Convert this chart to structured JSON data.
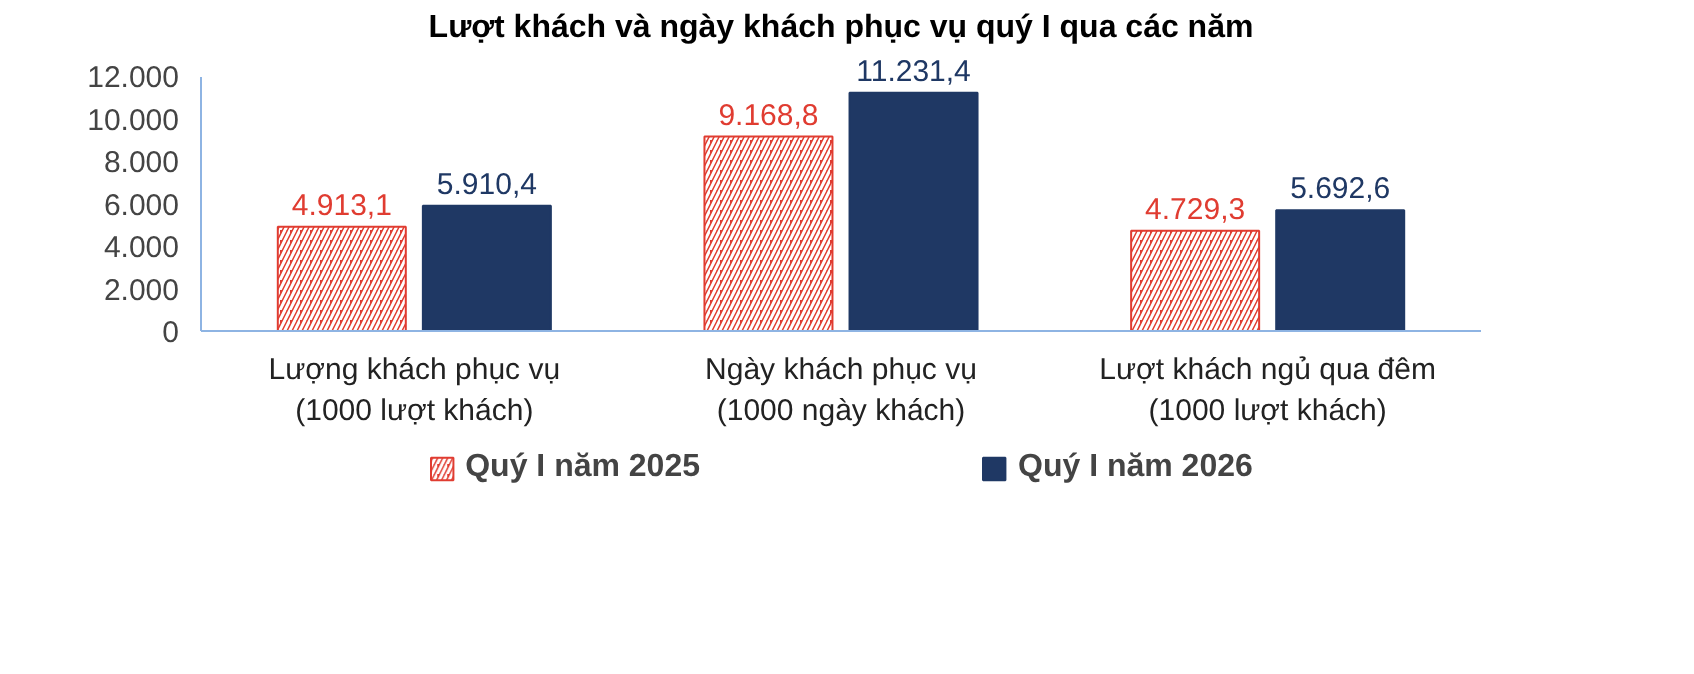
{
  "chart_data": {
    "type": "bar",
    "title": "Lượt khách và ngày khách phục vụ quý I qua các năm",
    "categories": [
      "Lượng khách phục vụ\n(1000 lượt khách)",
      "Ngày khách phục vụ\n(1000 ngày khách)",
      "Lượt khách ngủ qua đêm\n(1000 lượt khách)"
    ],
    "series": [
      {
        "name": "Quý I năm 2025",
        "color": "#e03c31",
        "values": [
          4913.1,
          9168.8,
          4729.3
        ],
        "value_labels": [
          "4.913,1",
          "9.168,8",
          "4.729,3"
        ]
      },
      {
        "name": "Quý I năm 2026",
        "color": "#1f3864",
        "values": [
          5910.4,
          11231.4,
          5692.6
        ],
        "value_labels": [
          "5.910,4",
          "11.231,4",
          "5.692,6"
        ]
      }
    ],
    "ylim": [
      0,
      12000
    ],
    "yticks": [
      0,
      {
        "value": 2000,
        "label": "2.000"
      },
      {
        "value": 4000,
        "label": "4.000"
      },
      {
        "value": 6000,
        "label": "6.000"
      },
      {
        "value": 8000,
        "label": "8.000"
      },
      {
        "value": 10000,
        "label": "10.000"
      },
      {
        "value": 12000,
        "label": "12.000"
      }
    ],
    "legend": "bottom"
  }
}
